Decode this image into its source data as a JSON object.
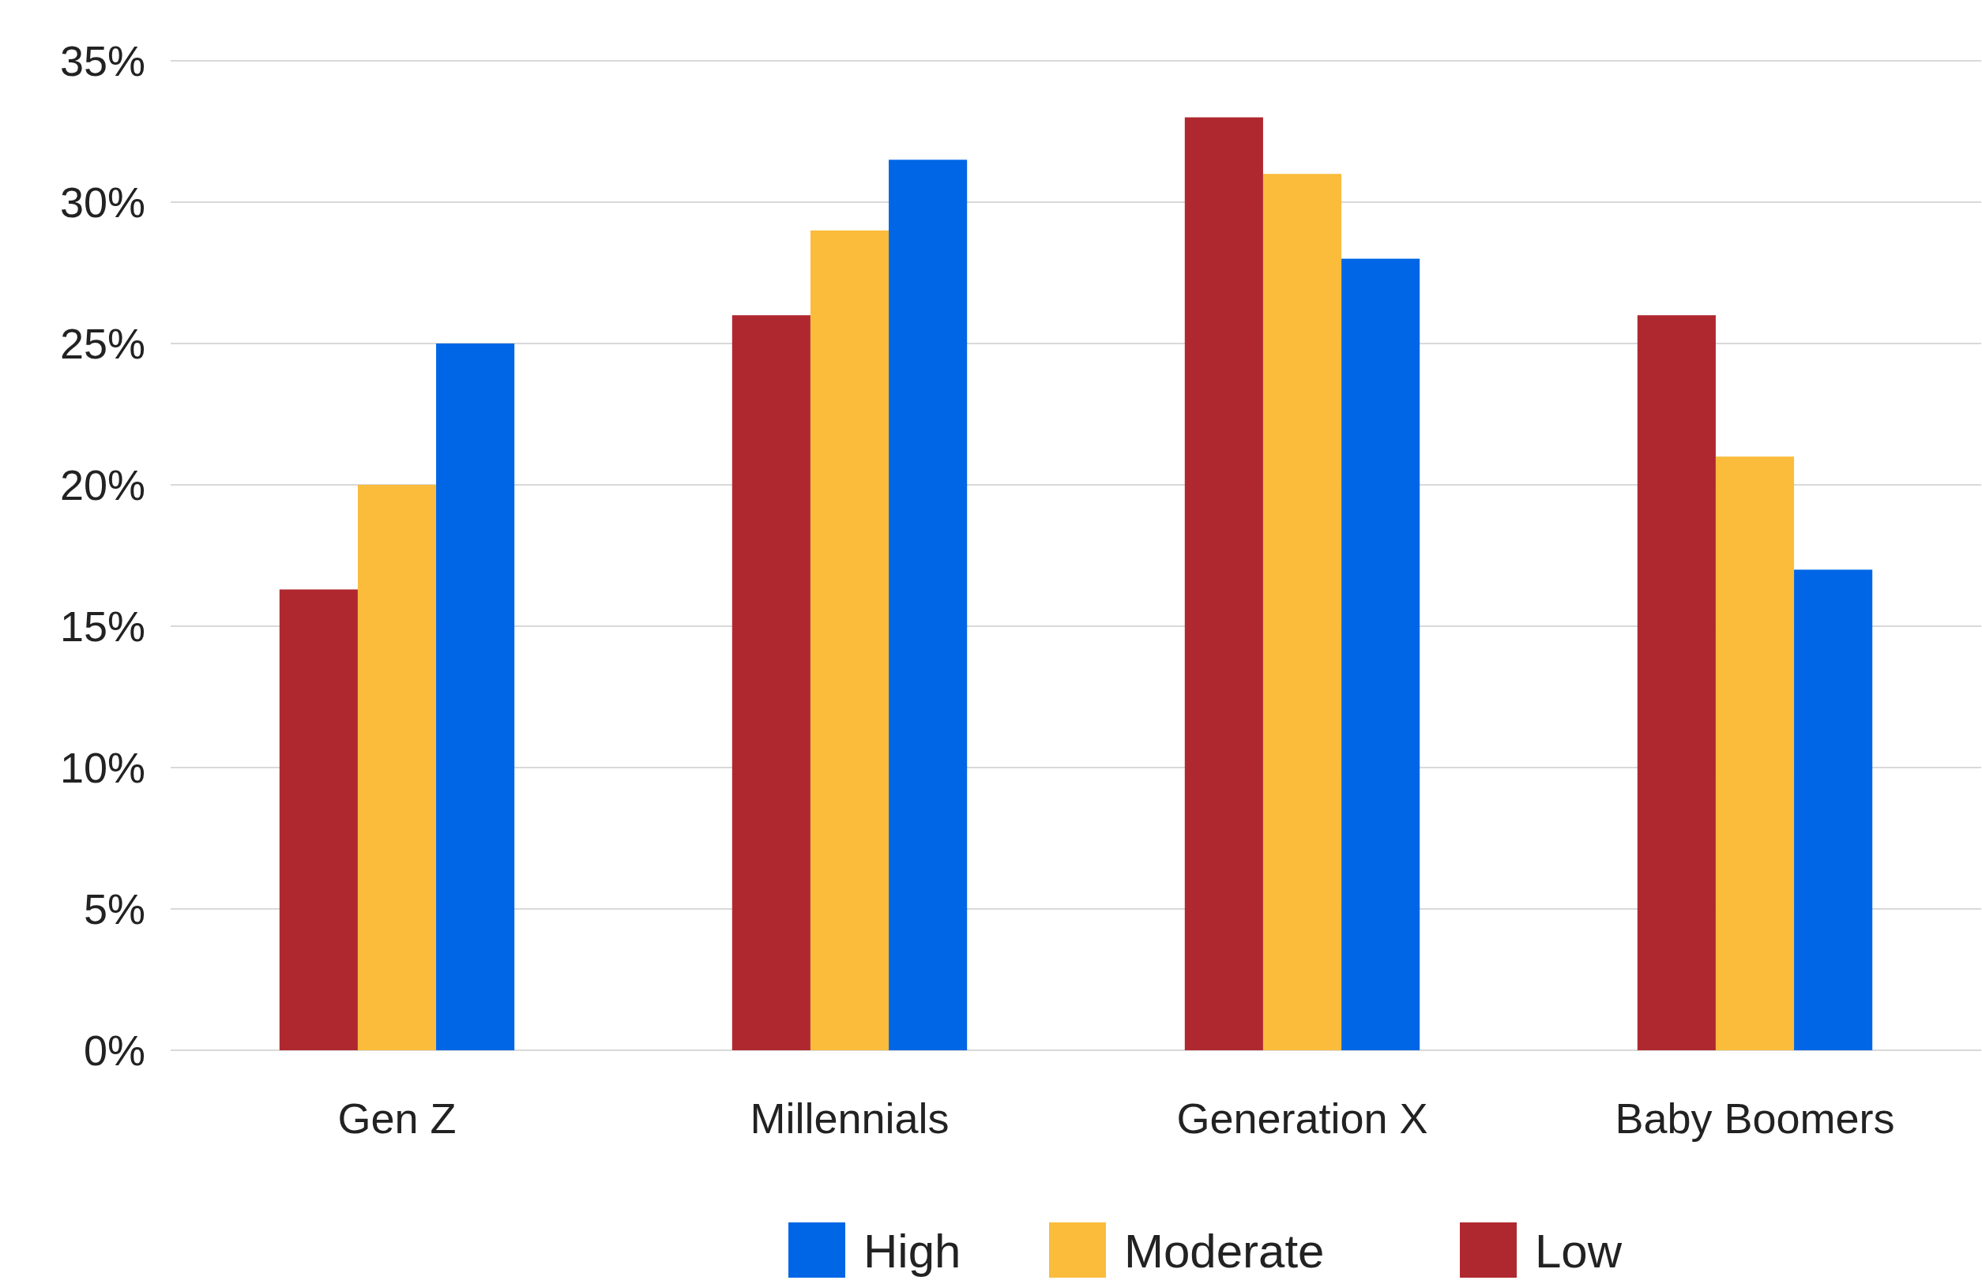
{
  "chart_data": {
    "type": "bar",
    "categories": [
      "Gen Z",
      "Millennials",
      "Generation X",
      "Baby Boomers"
    ],
    "series": [
      {
        "name": "Low",
        "color": "#b0282f",
        "values": [
          16.3,
          26,
          33,
          26
        ]
      },
      {
        "name": "Moderate",
        "color": "#fbbc3c",
        "values": [
          20,
          29,
          31,
          21
        ]
      },
      {
        "name": "High",
        "color": "#0066e6",
        "values": [
          25,
          31.5,
          28,
          17
        ]
      }
    ],
    "ylim": [
      0,
      35
    ],
    "yticks": [
      {
        "value": 0,
        "label": "0%"
      },
      {
        "value": 5,
        "label": "5%"
      },
      {
        "value": 10,
        "label": "10%"
      },
      {
        "value": 15,
        "label": "15%"
      },
      {
        "value": 20,
        "label": "20%"
      },
      {
        "value": 25,
        "label": "25%"
      },
      {
        "value": 30,
        "label": "30%"
      },
      {
        "value": 35,
        "label": "35%"
      }
    ],
    "grid": "y",
    "legend": "bottom"
  }
}
